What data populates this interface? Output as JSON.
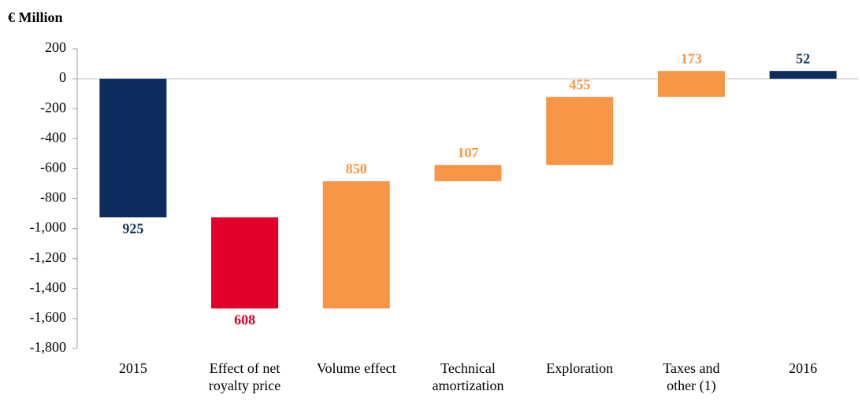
{
  "chart_data": {
    "type": "waterfall",
    "title": "€ Million",
    "categories": [
      "2015",
      "Effect of net\nroyalty price",
      "Volume effect",
      "Technical\namortization",
      "Exploration",
      "Taxes and\nother (1)",
      "2016"
    ],
    "values": [
      -925,
      -608,
      850,
      107,
      455,
      173,
      52
    ],
    "value_labels": [
      "925",
      "608",
      "850",
      "107",
      "455",
      "173",
      "52"
    ],
    "measure": [
      "absolute",
      "relative",
      "relative",
      "relative",
      "relative",
      "relative",
      "total"
    ],
    "colors": [
      "#0b2c5c",
      "#e2002b",
      "#f79646",
      "#f79646",
      "#f79646",
      "#f79646",
      "#0b2c5c"
    ],
    "label_colors": [
      "#17375e",
      "#e2002b",
      "#f79646",
      "#f79646",
      "#f79646",
      "#f79646",
      "#17375e"
    ],
    "ylim": [
      -1800,
      200
    ],
    "yticks": [
      200,
      0,
      -200,
      -400,
      -600,
      -800,
      {
        "value": -1000,
        "label": "-1,000"
      },
      {
        "value": -1200,
        "label": "-1,200"
      },
      {
        "value": -1400,
        "label": "-1,400"
      },
      {
        "value": -1600,
        "label": "-1,600"
      },
      {
        "value": -1800,
        "label": "-1,800"
      }
    ],
    "grid": false
  }
}
